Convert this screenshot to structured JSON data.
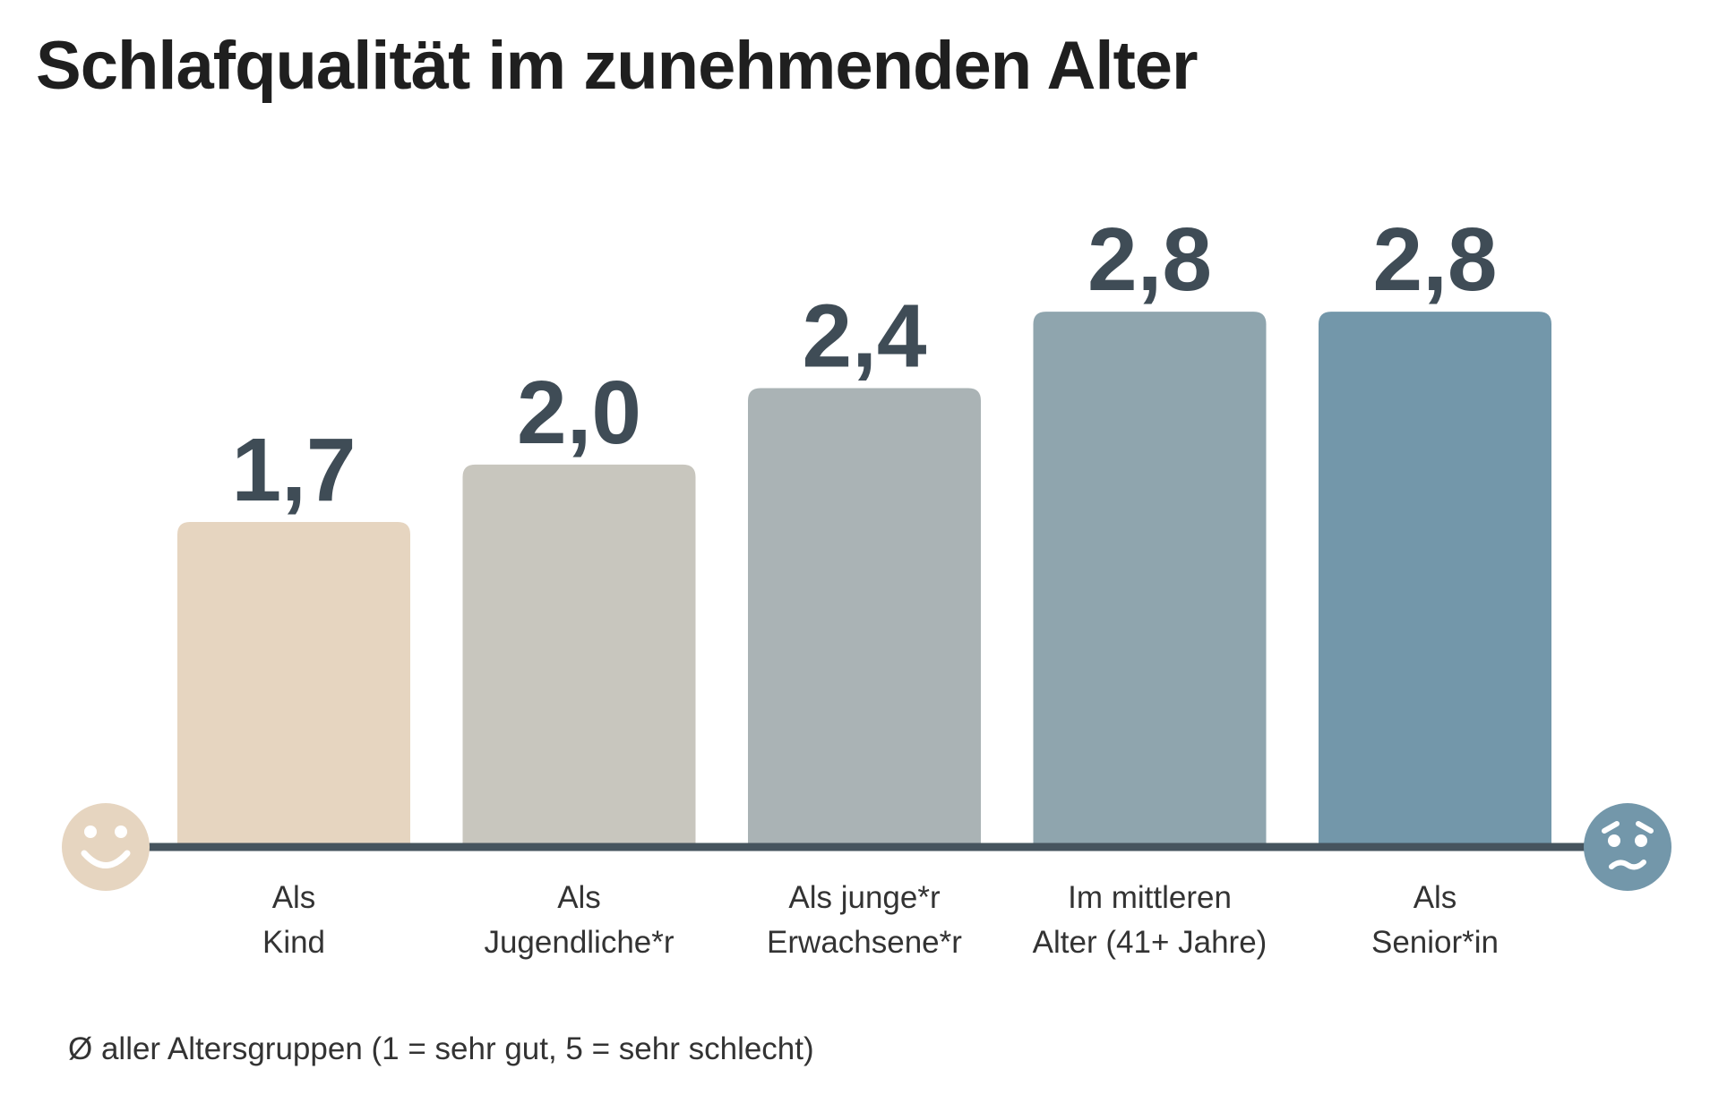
{
  "chart_data": {
    "type": "bar",
    "title": "Schlafqualität im zunehmenden Alter",
    "categories": [
      [
        "Als",
        "Kind"
      ],
      [
        "Als",
        "Jugendliche*r"
      ],
      [
        "Als junge*r",
        "Erwachsene*r"
      ],
      [
        "Im mittleren",
        "Alter (41+ Jahre)"
      ],
      [
        "Als",
        "Senior*in"
      ]
    ],
    "values": [
      1.7,
      2.0,
      2.4,
      2.8,
      2.8
    ],
    "value_labels": [
      "1,7",
      "2,0",
      "2,4",
      "2,8",
      "2,8"
    ],
    "ylim": [
      0,
      4.43
    ],
    "xlabel": "",
    "ylabel": "",
    "grid": false,
    "footnote": "Ø aller Altersgruppen (1 = sehr gut, 5 = sehr schlecht)",
    "left_marker": "smiling-face-icon",
    "right_marker": "worried-face-icon"
  },
  "colors": {
    "bars": [
      "#e6d5c0",
      "#c8c6be",
      "#aab3b5",
      "#8fa5ae",
      "#7397aa"
    ],
    "baseline": "#46545e",
    "value_text": "#3f4c56",
    "happy_face": "#e6d5c0",
    "sad_face": "#7397aa"
  }
}
